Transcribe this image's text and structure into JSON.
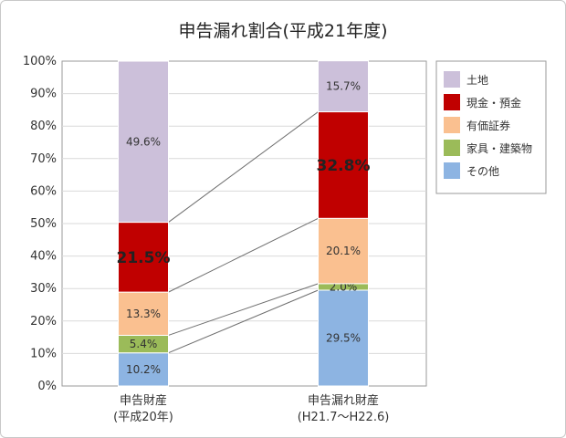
{
  "chart_data": {
    "type": "bar",
    "stacked": true,
    "title": "申告漏れ割合(平成21年度)",
    "xlabel": "",
    "ylabel": "",
    "ylim": [
      0,
      100
    ],
    "yticks": [
      "0%",
      "10%",
      "20%",
      "30%",
      "40%",
      "50%",
      "60%",
      "70%",
      "80%",
      "90%",
      "100%"
    ],
    "categories": [
      {
        "line1": "申告財産",
        "line2": "(平成20年)"
      },
      {
        "line1": "申告漏れ財産",
        "line2": "(H21.7～H22.6)"
      }
    ],
    "legend_position": "right",
    "grid": true,
    "series": [
      {
        "name": "その他",
        "color": "#8db4e2",
        "values": [
          10.2,
          29.5
        ],
        "labels": [
          "10.2%",
          "29.5%"
        ]
      },
      {
        "name": "家具・建築物",
        "color": "#9bbb59",
        "values": [
          5.4,
          2.0
        ],
        "labels": [
          "5.4%",
          "2.0%"
        ]
      },
      {
        "name": "有価証券",
        "color": "#fac090",
        "values": [
          13.3,
          20.1
        ],
        "labels": [
          "13.3%",
          "20.1%"
        ]
      },
      {
        "name": "現金・預金",
        "color": "#c00000",
        "values": [
          21.5,
          32.8
        ],
        "labels": [
          "21.5%",
          "32.8%"
        ],
        "emphasis": true
      },
      {
        "name": "土地",
        "color": "#ccc0da",
        "values": [
          49.6,
          15.7
        ],
        "labels": [
          "49.6%",
          "15.7%"
        ]
      }
    ],
    "legend_order": [
      "土地",
      "現金・預金",
      "有価証券",
      "家具・建築物",
      "その他"
    ]
  }
}
